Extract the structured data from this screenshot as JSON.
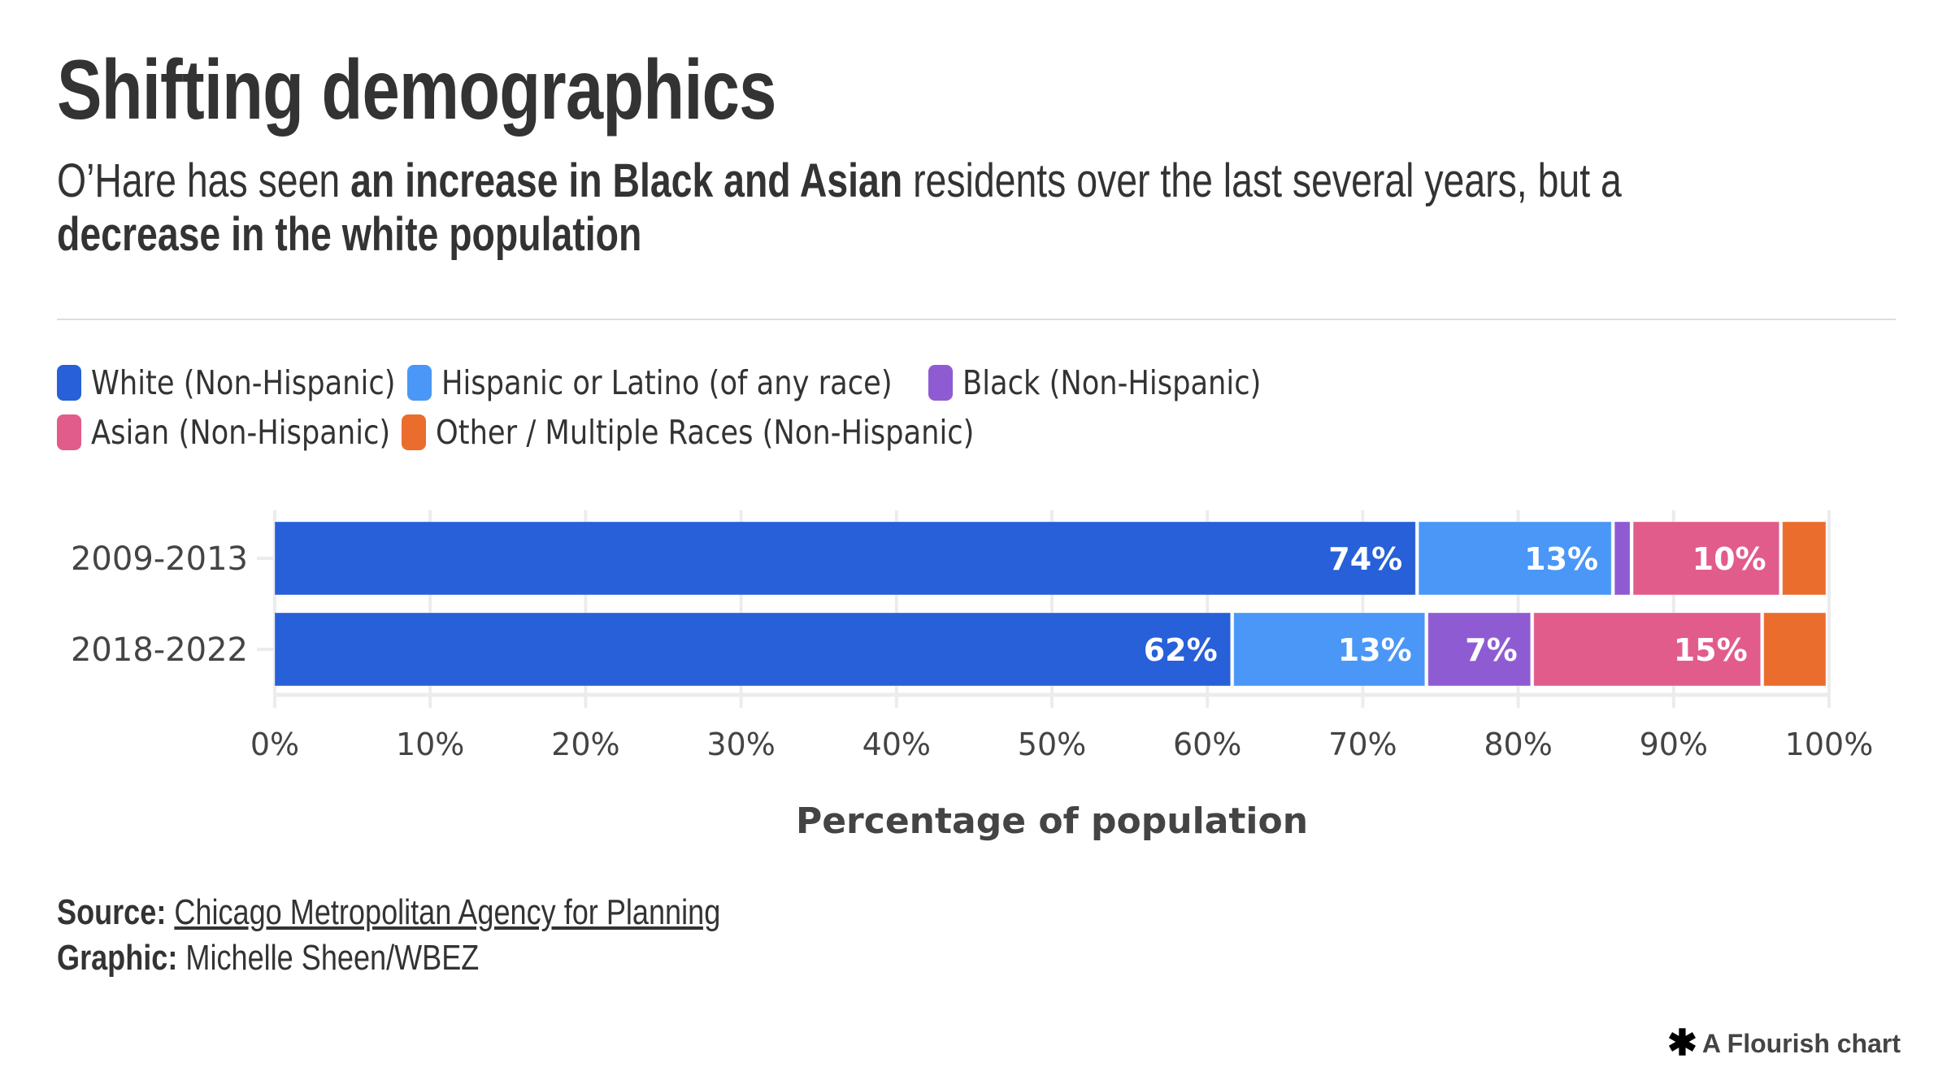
{
  "header": {
    "title": "Shifting demographics",
    "subtitle": {
      "part1": "O’Hare has seen ",
      "bold1": "an increase in Black and Asian",
      "part2": " residents over the last several years, but a ",
      "bold2": "decrease in the white population"
    }
  },
  "legend": {
    "items": [
      {
        "label": "White (Non-Hispanic)",
        "color": "#2760d8"
      },
      {
        "label": "Hispanic or Latino (of any race)",
        "color": "#4a97f7"
      },
      {
        "label": "Black (Non-Hispanic)",
        "color": "#8f5bd3"
      },
      {
        "label": "Asian (Non-Hispanic)",
        "color": "#e25c8b"
      },
      {
        "label": "Other / Multiple Races (Non-Hispanic)",
        "color": "#ea6d2e"
      }
    ]
  },
  "chart_data": {
    "type": "bar",
    "orientation": "horizontal",
    "stacked": true,
    "categories": [
      "2009-2013",
      "2018-2022"
    ],
    "series": [
      {
        "name": "White (Non-Hispanic)",
        "color": "#2760d8",
        "values": [
          73.6,
          61.7
        ],
        "labels": [
          "74%",
          "62%"
        ]
      },
      {
        "name": "Hispanic or Latino (of any race)",
        "color": "#4a97f7",
        "values": [
          12.6,
          12.5
        ],
        "labels": [
          "13%",
          "13%"
        ]
      },
      {
        "name": "Black (Non-Hispanic)",
        "color": "#8f5bd3",
        "values": [
          1.2,
          6.8
        ],
        "labels": [
          "",
          "7%"
        ]
      },
      {
        "name": "Asian (Non-Hispanic)",
        "color": "#e25c8b",
        "values": [
          9.6,
          14.8
        ],
        "labels": [
          "10%",
          "15%"
        ]
      },
      {
        "name": "Other / Multiple Races (Non-Hispanic)",
        "color": "#ea6d2e",
        "values": [
          3.0,
          4.2
        ],
        "labels": [
          "",
          ""
        ]
      }
    ],
    "xlabel": "Percentage of population",
    "ylabel": "",
    "xlim": [
      0,
      100
    ],
    "xticks": [
      "0%",
      "10%",
      "20%",
      "30%",
      "40%",
      "50%",
      "60%",
      "70%",
      "80%",
      "90%",
      "100%"
    ],
    "grid": true,
    "legend_position": "top-left"
  },
  "footer": {
    "source_label": "Source:",
    "source_text": "Chicago Metropolitan Agency for Planning",
    "graphic_label": "Graphic:",
    "graphic_text": "Michelle Sheen/WBEZ"
  },
  "branding": {
    "flourish_icon": "asterisk-icon",
    "flourish_text": "A Flourish chart"
  }
}
